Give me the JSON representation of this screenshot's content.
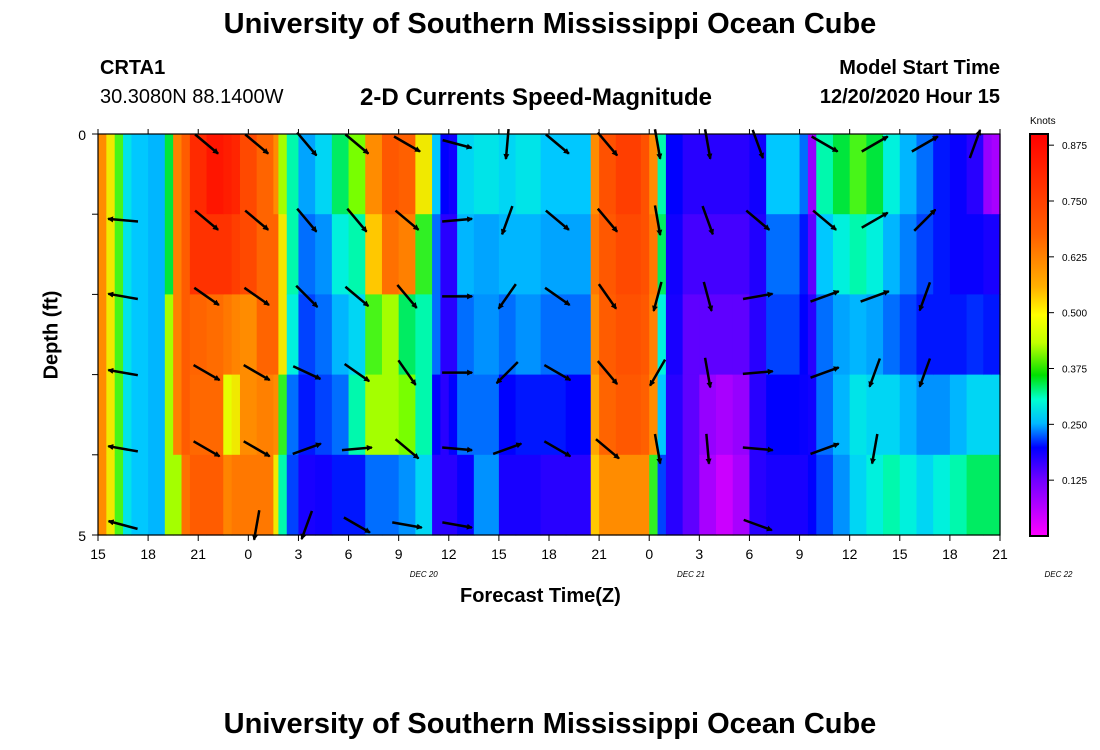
{
  "header": {
    "title": "University of Southern Mississippi Ocean Cube",
    "station": "CRTA1",
    "coords": "30.3080N 88.1400W",
    "subtitle": "2-D Currents Speed-Magnitude",
    "model_start_label": "Model Start Time",
    "model_start_value": "12/20/2020 Hour 15"
  },
  "footer": {
    "title": "University of Southern Mississippi Ocean Cube"
  },
  "chart_data": {
    "type": "heatmap",
    "title": "2-D Currents Speed-Magnitude",
    "xlabel": "Forecast Time(Z)",
    "ylabel": "Depth (ft)",
    "colorbar_label": "Knots",
    "colorbar_ticks": [
      "0.875",
      "0.750",
      "0.625",
      "0.500",
      "0.375",
      "0.250",
      "0.125"
    ],
    "colorbar_range": [
      0,
      0.9
    ],
    "x_tick_labels": [
      "15",
      "18",
      "21",
      "0",
      "3",
      "6",
      "9",
      "12",
      "15",
      "18",
      "21",
      "0",
      "3",
      "6",
      "9",
      "12",
      "15",
      "18",
      "21"
    ],
    "date_labels": [
      {
        "text": "DEC 20",
        "at_hour": 19.5
      },
      {
        "text": "DEC 21",
        "at_hour": 35.5
      },
      {
        "text": "DEC 22",
        "at_hour": 57.5
      }
    ],
    "y_tick_labels": [
      "0",
      "5"
    ],
    "x_range_hours": [
      0,
      54
    ],
    "depth_range_ft": [
      0,
      5
    ],
    "depth_levels": 5,
    "time_columns": [
      {
        "h": 0,
        "v": [
          0.55,
          0.55,
          0.55,
          0.55,
          0.55
        ]
      },
      {
        "h": 0.5,
        "v": [
          0.45,
          0.45,
          0.45,
          0.45,
          0.45
        ]
      },
      {
        "h": 1.0,
        "v": [
          0.36,
          0.36,
          0.36,
          0.36,
          0.36
        ]
      },
      {
        "h": 1.5,
        "v": [
          0.27,
          0.27,
          0.27,
          0.27,
          0.27
        ]
      },
      {
        "h": 2.0,
        "v": [
          0.25,
          0.25,
          0.25,
          0.25,
          0.25
        ]
      },
      {
        "h": 3.0,
        "v": [
          0.24,
          0.24,
          0.24,
          0.24,
          0.24
        ]
      },
      {
        "h": 4.0,
        "v": [
          0.33,
          0.33,
          0.4,
          0.4,
          0.4
        ]
      },
      {
        "h": 4.5,
        "v": [
          0.58,
          0.58,
          0.58,
          0.58,
          0.4
        ]
      },
      {
        "h": 5.0,
        "v": [
          0.67,
          0.67,
          0.67,
          0.67,
          0.62
        ]
      },
      {
        "h": 5.5,
        "v": [
          0.8,
          0.78,
          0.65,
          0.64,
          0.67
        ]
      },
      {
        "h": 6.5,
        "v": [
          0.85,
          0.78,
          0.63,
          0.64,
          0.67
        ]
      },
      {
        "h": 7.5,
        "v": [
          0.83,
          0.78,
          0.6,
          0.43,
          0.57
        ]
      },
      {
        "h": 8.0,
        "v": [
          0.81,
          0.75,
          0.57,
          0.45,
          0.6
        ]
      },
      {
        "h": 8.5,
        "v": [
          0.72,
          0.72,
          0.55,
          0.55,
          0.6
        ]
      },
      {
        "h": 9.5,
        "v": [
          0.65,
          0.65,
          0.65,
          0.58,
          0.6
        ]
      },
      {
        "h": 10.5,
        "v": [
          0.55,
          0.65,
          0.65,
          0.55,
          0.45
        ]
      },
      {
        "h": 10.8,
        "v": [
          0.4,
          0.45,
          0.45,
          0.35,
          0.3
        ]
      },
      {
        "h": 11.3,
        "v": [
          0.3,
          0.3,
          0.28,
          0.2,
          0.18
        ]
      },
      {
        "h": 12.0,
        "v": [
          0.23,
          0.2,
          0.18,
          0.16,
          0.12
        ]
      },
      {
        "h": 13.0,
        "v": [
          0.26,
          0.22,
          0.2,
          0.18,
          0.13
        ]
      },
      {
        "h": 14.0,
        "v": [
          0.32,
          0.28,
          0.24,
          0.2,
          0.16
        ]
      },
      {
        "h": 15.0,
        "v": [
          0.38,
          0.3,
          0.26,
          0.3,
          0.16
        ]
      },
      {
        "h": 16.0,
        "v": [
          0.55,
          0.48,
          0.36,
          0.4,
          0.2
        ]
      },
      {
        "h": 17.0,
        "v": [
          0.68,
          0.62,
          0.4,
          0.4,
          0.2
        ]
      },
      {
        "h": 18.0,
        "v": [
          0.66,
          0.58,
          0.32,
          0.38,
          0.22
        ]
      },
      {
        "h": 19.0,
        "v": [
          0.45,
          0.35,
          0.3,
          0.3,
          0.26
        ]
      },
      {
        "h": 20.0,
        "v": [
          0.25,
          0.2,
          0.2,
          0.15,
          0.1
        ]
      },
      {
        "h": 20.5,
        "v": [
          0.15,
          0.1,
          0.1,
          0.1,
          0.1
        ]
      },
      {
        "h": 21.0,
        "v": [
          0.13,
          0.1,
          0.1,
          0.15,
          0.1
        ]
      },
      {
        "h": 21.5,
        "v": [
          0.26,
          0.24,
          0.2,
          0.2,
          0.14
        ]
      },
      {
        "h": 22.5,
        "v": [
          0.27,
          0.23,
          0.22,
          0.2,
          0.22
        ]
      },
      {
        "h": 24.0,
        "v": [
          0.26,
          0.24,
          0.2,
          0.15,
          0.12
        ]
      },
      {
        "h": 25.0,
        "v": [
          0.27,
          0.24,
          0.22,
          0.16,
          0.12
        ]
      },
      {
        "h": 26.5,
        "v": [
          0.25,
          0.23,
          0.2,
          0.16,
          0.1
        ]
      },
      {
        "h": 28.0,
        "v": [
          0.25,
          0.23,
          0.2,
          0.15,
          0.1
        ]
      },
      {
        "h": 29.5,
        "v": [
          0.55,
          0.6,
          0.55,
          0.52,
          0.48
        ]
      },
      {
        "h": 30.0,
        "v": [
          0.7,
          0.68,
          0.67,
          0.65,
          0.55
        ]
      },
      {
        "h": 31.0,
        "v": [
          0.75,
          0.72,
          0.7,
          0.68,
          0.55
        ]
      },
      {
        "h": 32.5,
        "v": [
          0.7,
          0.7,
          0.68,
          0.66,
          0.55
        ]
      },
      {
        "h": 33.0,
        "v": [
          0.55,
          0.6,
          0.58,
          0.55,
          0.35
        ]
      },
      {
        "h": 33.5,
        "v": [
          0.3,
          0.32,
          0.28,
          0.25,
          0.18
        ]
      },
      {
        "h": 34.0,
        "v": [
          0.15,
          0.13,
          0.12,
          0.1,
          0.1
        ]
      },
      {
        "h": 35.0,
        "v": [
          0.1,
          0.09,
          0.08,
          0.08,
          0.08
        ]
      },
      {
        "h": 36.0,
        "v": [
          0.1,
          0.09,
          0.08,
          0.06,
          0.05
        ]
      },
      {
        "h": 37.0,
        "v": [
          0.1,
          0.09,
          0.08,
          0.05,
          0.03
        ]
      },
      {
        "h": 38.0,
        "v": [
          0.1,
          0.09,
          0.08,
          0.06,
          0.05
        ]
      },
      {
        "h": 39.0,
        "v": [
          0.13,
          0.11,
          0.1,
          0.1,
          0.1
        ]
      },
      {
        "h": 40.0,
        "v": [
          0.25,
          0.2,
          0.18,
          0.15,
          0.12
        ]
      },
      {
        "h": 42.0,
        "v": [
          0.2,
          0.16,
          0.15,
          0.14,
          0.12
        ]
      },
      {
        "h": 42.5,
        "v": [
          0.06,
          0.08,
          0.1,
          0.13,
          0.15
        ]
      },
      {
        "h": 43.0,
        "v": [
          0.3,
          0.25,
          0.2,
          0.2,
          0.18
        ]
      },
      {
        "h": 44.0,
        "v": [
          0.33,
          0.28,
          0.23,
          0.24,
          0.22
        ]
      },
      {
        "h": 45.0,
        "v": [
          0.36,
          0.3,
          0.24,
          0.27,
          0.26
        ]
      },
      {
        "h": 46.0,
        "v": [
          0.33,
          0.28,
          0.23,
          0.26,
          0.28
        ]
      },
      {
        "h": 47.0,
        "v": [
          0.28,
          0.24,
          0.2,
          0.26,
          0.3
        ]
      },
      {
        "h": 48.0,
        "v": [
          0.24,
          0.21,
          0.18,
          0.24,
          0.28
        ]
      },
      {
        "h": 49.0,
        "v": [
          0.2,
          0.18,
          0.16,
          0.22,
          0.26
        ]
      },
      {
        "h": 50.0,
        "v": [
          0.16,
          0.16,
          0.16,
          0.22,
          0.28
        ]
      },
      {
        "h": 51.0,
        "v": [
          0.14,
          0.14,
          0.16,
          0.24,
          0.3
        ]
      },
      {
        "h": 52.0,
        "v": [
          0.1,
          0.14,
          0.17,
          0.26,
          0.32
        ]
      },
      {
        "h": 53.0,
        "v": [
          0.06,
          0.12,
          0.16,
          0.26,
          0.32
        ]
      },
      {
        "h": 53.5,
        "v": [
          0.05,
          0.12,
          0.16,
          0.26,
          0.32
        ]
      }
    ],
    "vectors": {
      "hours": [
        1.5,
        6.5,
        9.5,
        12.5,
        15.5,
        18.5,
        21.5,
        24.5,
        27.5,
        30.5,
        33.5,
        36.5,
        39.5,
        43.5,
        46.5,
        49.5,
        52.5
      ],
      "depths": [
        0,
        1,
        2,
        3,
        4,
        5
      ],
      "note": "Current direction arrows, one per hour column and depth row; values are flow direction in compass degrees (to) and normalized length.",
      "directions_deg": [
        [
          -1,
          130,
          130,
          140,
          130,
          120,
          105,
          185,
          130,
          140,
          170,
          170,
          160,
          120,
          60,
          60,
          20
        ],
        [
          275,
          130,
          130,
          140,
          140,
          130,
          85,
          200,
          130,
          140,
          170,
          160,
          130,
          130,
          60,
          45,
          -1
        ],
        [
          280,
          125,
          125,
          135,
          130,
          140,
          90,
          215,
          125,
          145,
          195,
          165,
          80,
          70,
          70,
          200,
          -1
        ],
        [
          280,
          120,
          120,
          115,
          125,
          145,
          90,
          225,
          120,
          140,
          210,
          170,
          85,
          70,
          200,
          200,
          -1
        ],
        [
          280,
          120,
          120,
          70,
          85,
          130,
          95,
          70,
          120,
          130,
          170,
          175,
          95,
          70,
          190,
          -1,
          -1
        ],
        [
          285,
          -1,
          190,
          200,
          120,
          100,
          100,
          -1,
          -1,
          -1,
          -1,
          -1,
          110,
          -1,
          -1,
          -1,
          -1
        ]
      ]
    }
  }
}
